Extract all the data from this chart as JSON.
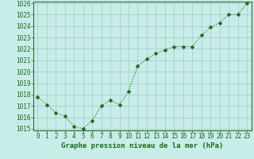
{
  "x": [
    0,
    1,
    2,
    3,
    4,
    5,
    6,
    7,
    8,
    9,
    10,
    11,
    12,
    13,
    14,
    15,
    16,
    17,
    18,
    19,
    20,
    21,
    22,
    23
  ],
  "y": [
    1017.8,
    1017.1,
    1016.4,
    1016.1,
    1015.2,
    1015.0,
    1015.7,
    1017.0,
    1017.5,
    1017.1,
    1018.3,
    1020.5,
    1021.1,
    1021.6,
    1021.9,
    1022.2,
    1022.2,
    1022.2,
    1023.2,
    1023.9,
    1024.3,
    1025.0,
    1025.0,
    1026.0
  ],
  "ylim_min": 1015,
  "ylim_max": 1026,
  "yticks": [
    1015,
    1016,
    1017,
    1018,
    1019,
    1020,
    1021,
    1022,
    1023,
    1024,
    1025,
    1026
  ],
  "xticks": [
    0,
    1,
    2,
    3,
    4,
    5,
    6,
    7,
    8,
    9,
    10,
    11,
    12,
    13,
    14,
    15,
    16,
    17,
    18,
    19,
    20,
    21,
    22,
    23
  ],
  "xlabel": "Graphe pression niveau de la mer (hPa)",
  "line_color": "#1a6b1a",
  "marker_color": "#1a6b1a",
  "bg_color": "#c8ece8",
  "grid_color": "#a0ccc8",
  "border_color": "#2d6b2d",
  "xlabel_color": "#1a6b1a",
  "markersize": 2.5,
  "linewidth": 0.8,
  "tick_labelsize": 5.5,
  "xlabel_fontsize": 6.5
}
